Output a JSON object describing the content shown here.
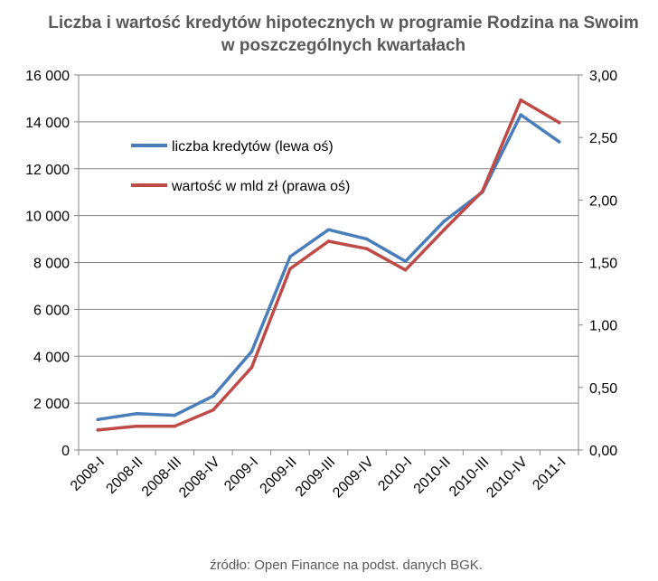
{
  "chart_data": {
    "type": "line",
    "title_line1": "Liczba i wartość kredytów hipotecznych w programie Rodzina na Swoim",
    "title_line2": "w poszczególnych kwartałach",
    "categories": [
      "2008-I",
      "2008-II",
      "2008-III",
      "2008-IV",
      "2009-I",
      "2009-II",
      "2009-III",
      "2009-IV",
      "2010-I",
      "2010-II",
      "2010-III",
      "2010-IV",
      "2011-I"
    ],
    "series": [
      {
        "name": "liczba kredytów (lewa oś)",
        "axis": "left",
        "color": "#4A7EBB",
        "values": [
          1300,
          1550,
          1480,
          2300,
          4200,
          8250,
          9400,
          9000,
          8050,
          9750,
          11000,
          14300,
          13150
        ]
      },
      {
        "name": "wartość w mld zł (prawa oś)",
        "axis": "right",
        "color": "#BE4B48",
        "values": [
          0.16,
          0.19,
          0.19,
          0.32,
          0.66,
          1.45,
          1.67,
          1.61,
          1.44,
          1.76,
          2.07,
          2.8,
          2.62
        ]
      }
    ],
    "y_left": {
      "range": [
        0,
        16000
      ],
      "ticks": [
        0,
        2000,
        4000,
        6000,
        8000,
        10000,
        12000,
        14000,
        16000
      ],
      "tick_labels": [
        "0",
        "2 000",
        "4 000",
        "6 000",
        "8 000",
        "10 000",
        "12 000",
        "14 000",
        "16 000"
      ]
    },
    "y_right": {
      "range": [
        0,
        3
      ],
      "ticks": [
        0,
        0.5,
        1,
        1.5,
        2,
        2.5,
        3
      ],
      "tick_labels": [
        "0,00",
        "0,50",
        "1,00",
        "1,50",
        "2,00",
        "2,50",
        "3,00"
      ]
    },
    "grid": true,
    "legend_position": "top-left",
    "source": "źródło: Open Finance na podst. danych BGK."
  }
}
